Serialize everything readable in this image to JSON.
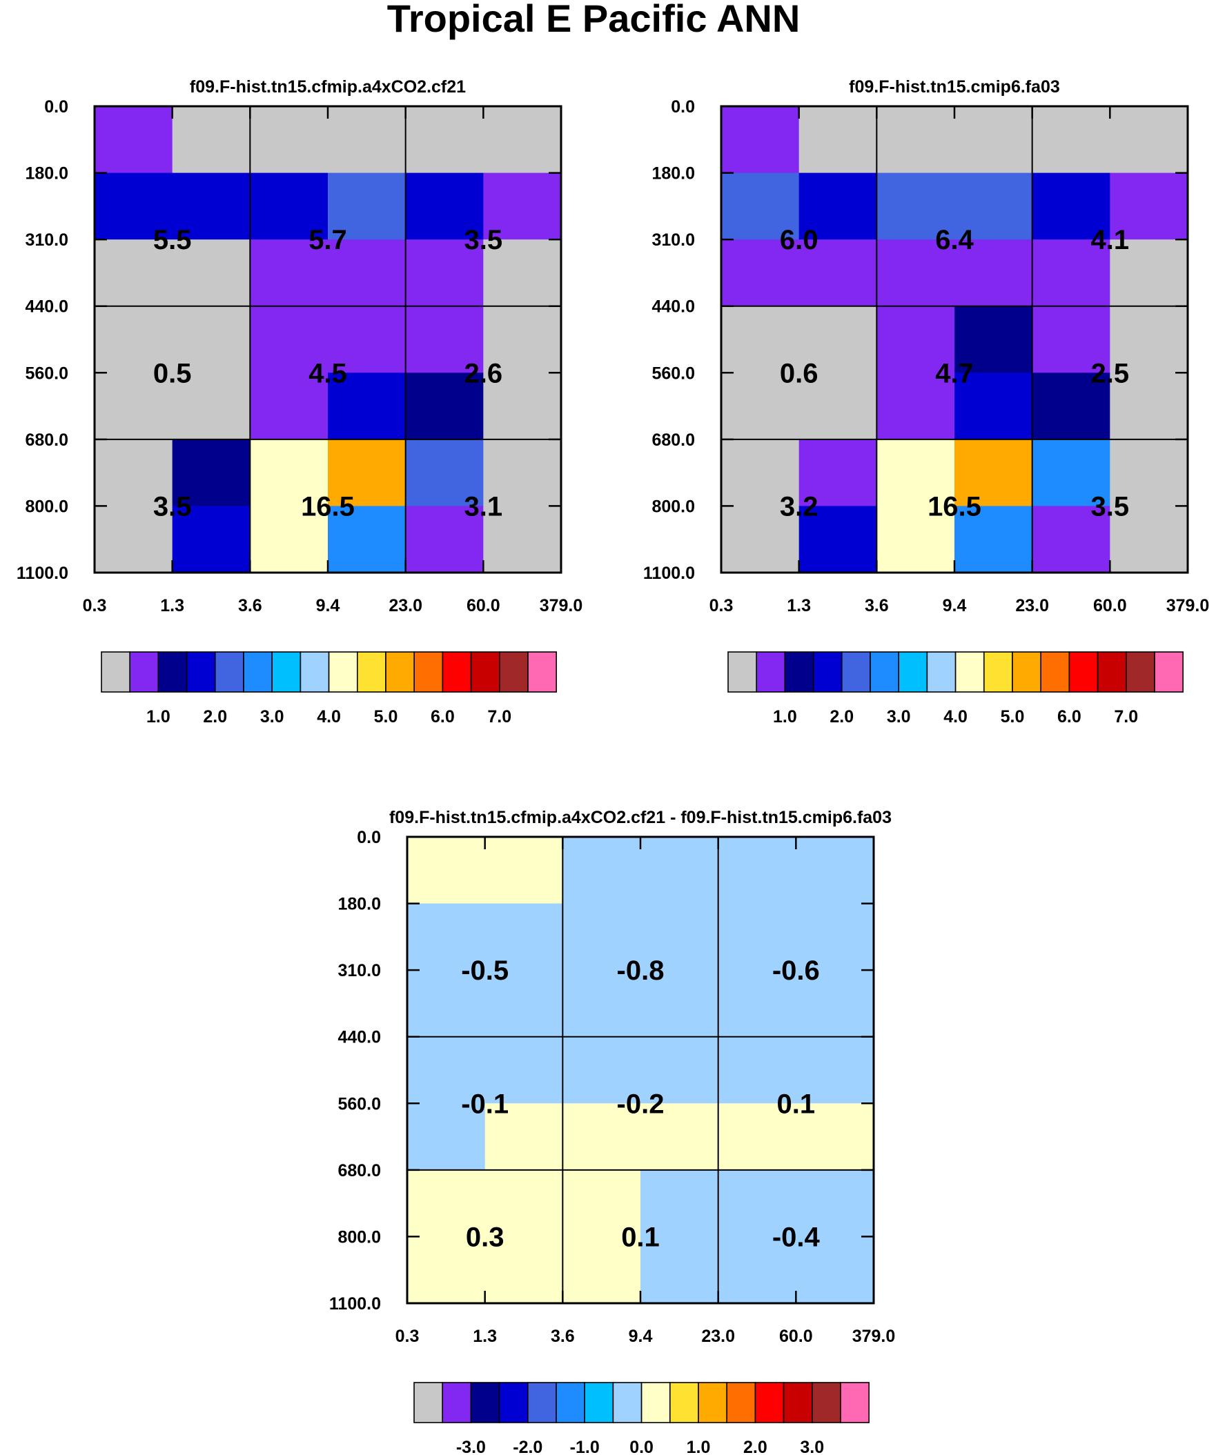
{
  "figure_title": "Tropical E Pacific ANN",
  "palette": [
    "#c8c8c8",
    "#8228f0",
    "#00008c",
    "#0000d2",
    "#4164e1",
    "#1e8cff",
    "#00bfff",
    "#a0d2ff",
    "#ffffc8",
    "#ffe132",
    "#ffaa00",
    "#ff6e00",
    "#ff0000",
    "#c80000",
    "#a02828",
    "#ff69b4"
  ],
  "chart_data": [
    {
      "id": "a",
      "type": "heatmap",
      "title": "f09.F-hist.tn15.cfmip.a4xCO2.cf21",
      "x_ticks": [
        "0.3",
        "1.3",
        "3.6",
        "9.4",
        "23.0",
        "60.0",
        "379.0"
      ],
      "y_ticks": [
        "0.0",
        "180.0",
        "310.0",
        "440.0",
        "560.0",
        "680.0",
        "800.0",
        "1100.0"
      ],
      "cells": [
        [
          1,
          0,
          0,
          0,
          0,
          0
        ],
        [
          3,
          3,
          3,
          4,
          3,
          1
        ],
        [
          0,
          0,
          1,
          1,
          1,
          0
        ],
        [
          0,
          0,
          1,
          1,
          1,
          0
        ],
        [
          0,
          0,
          1,
          3,
          2,
          0
        ],
        [
          0,
          2,
          8,
          10,
          4,
          0
        ],
        [
          0,
          3,
          8,
          5,
          1,
          0
        ]
      ],
      "block_values": [
        [
          "5.5",
          "5.7",
          "3.5"
        ],
        [
          "0.5",
          "4.5",
          "2.6"
        ],
        [
          "3.5",
          "16.5",
          "3.1"
        ]
      ],
      "colorbar_labels": [
        "1.0",
        "2.0",
        "3.0",
        "4.0",
        "5.0",
        "6.0",
        "7.0"
      ]
    },
    {
      "id": "b",
      "type": "heatmap",
      "title": "f09.F-hist.tn15.cmip6.fa03",
      "x_ticks": [
        "0.3",
        "1.3",
        "3.6",
        "9.4",
        "23.0",
        "60.0",
        "379.0"
      ],
      "y_ticks": [
        "0.0",
        "180.0",
        "310.0",
        "440.0",
        "560.0",
        "680.0",
        "800.0",
        "1100.0"
      ],
      "cells": [
        [
          1,
          0,
          0,
          0,
          0,
          0
        ],
        [
          4,
          3,
          4,
          4,
          3,
          1
        ],
        [
          1,
          1,
          1,
          1,
          1,
          0
        ],
        [
          0,
          0,
          1,
          2,
          1,
          0
        ],
        [
          0,
          0,
          1,
          3,
          2,
          0
        ],
        [
          0,
          1,
          8,
          10,
          5,
          0
        ],
        [
          0,
          3,
          8,
          5,
          1,
          0
        ]
      ],
      "block_values": [
        [
          "6.0",
          "6.4",
          "4.1"
        ],
        [
          "0.6",
          "4.7",
          "2.5"
        ],
        [
          "3.2",
          "16.5",
          "3.5"
        ]
      ],
      "colorbar_labels": [
        "1.0",
        "2.0",
        "3.0",
        "4.0",
        "5.0",
        "6.0",
        "7.0"
      ]
    },
    {
      "id": "c",
      "type": "heatmap",
      "title": "f09.F-hist.tn15.cfmip.a4xCO2.cf21 - f09.F-hist.tn15.cmip6.fa03",
      "x_ticks": [
        "0.3",
        "1.3",
        "3.6",
        "9.4",
        "23.0",
        "60.0",
        "379.0"
      ],
      "y_ticks": [
        "0.0",
        "180.0",
        "310.0",
        "440.0",
        "560.0",
        "680.0",
        "800.0",
        "1100.0"
      ],
      "cells": [
        [
          8,
          8,
          7,
          7,
          7,
          7
        ],
        [
          7,
          7,
          7,
          7,
          7,
          7
        ],
        [
          7,
          7,
          7,
          7,
          7,
          7
        ],
        [
          7,
          7,
          7,
          7,
          7,
          7
        ],
        [
          7,
          8,
          8,
          8,
          8,
          8
        ],
        [
          8,
          8,
          8,
          7,
          7,
          7
        ],
        [
          8,
          8,
          8,
          7,
          7,
          7
        ]
      ],
      "block_values": [
        [
          "-0.5",
          "-0.8",
          "-0.6"
        ],
        [
          "-0.1",
          "-0.2",
          "0.1"
        ],
        [
          "0.3",
          "0.1",
          "-0.4"
        ]
      ],
      "colorbar_labels": [
        "-3.0",
        "-2.0",
        "-1.0",
        "0.0",
        "1.0",
        "2.0",
        "3.0"
      ]
    }
  ]
}
